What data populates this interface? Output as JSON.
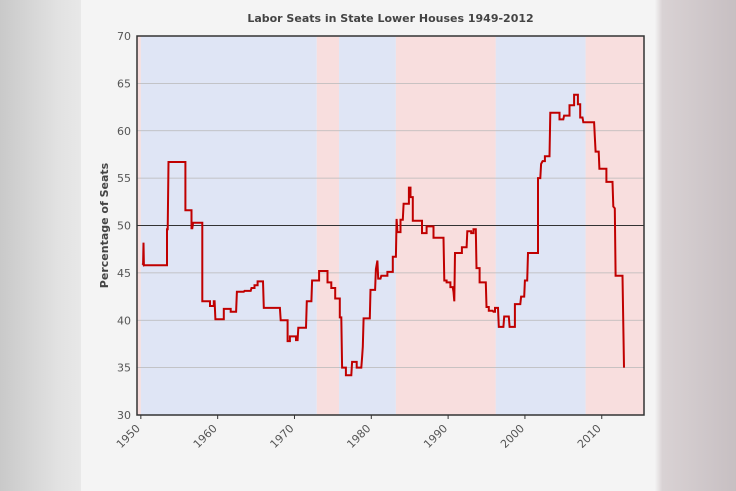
{
  "chart_data": {
    "type": "line",
    "title": "Labor Seats in State Lower Houses 1949-2012",
    "xlabel": "",
    "ylabel": "Percentage of Seats",
    "xlim": [
      1949.5,
      2015.5
    ],
    "ylim": [
      30,
      70
    ],
    "x_ticks": [
      1950,
      1960,
      1970,
      1980,
      1990,
      2000,
      2010
    ],
    "y_ticks": [
      30,
      35,
      40,
      45,
      50,
      55,
      60,
      65,
      70
    ],
    "reference_line": 50,
    "grid": true,
    "bands": [
      {
        "from": 1949.5,
        "to": 1950.0,
        "party": "labor",
        "color": "#f8dede"
      },
      {
        "from": 1950.0,
        "to": 1972.9,
        "party": "coalition",
        "color": "#dfe5f5"
      },
      {
        "from": 1972.9,
        "to": 1975.8,
        "party": "labor",
        "color": "#f8dede"
      },
      {
        "from": 1975.8,
        "to": 1983.2,
        "party": "coalition",
        "color": "#dfe5f5"
      },
      {
        "from": 1983.2,
        "to": 1996.2,
        "party": "labor",
        "color": "#f8dede"
      },
      {
        "from": 1996.2,
        "to": 2007.9,
        "party": "coalition",
        "color": "#dfe5f5"
      },
      {
        "from": 2007.9,
        "to": 2015.5,
        "party": "labor",
        "color": "#f8dede"
      }
    ],
    "series": [
      {
        "color": "#c00000",
        "points": [
          [
            1950.2,
            46.0
          ],
          [
            1950.3,
            45.9
          ],
          [
            1950.35,
            48.2
          ],
          [
            1950.4,
            45.8
          ],
          [
            1953.4,
            45.8
          ],
          [
            1953.4,
            49.6
          ],
          [
            1953.5,
            49.6
          ],
          [
            1953.6,
            56.7
          ],
          [
            1955.8,
            56.7
          ],
          [
            1955.8,
            51.6
          ],
          [
            1956.6,
            51.6
          ],
          [
            1956.6,
            49.7
          ],
          [
            1956.7,
            49.7
          ],
          [
            1956.8,
            50.3
          ],
          [
            1958.0,
            50.3
          ],
          [
            1958.0,
            42.0
          ],
          [
            1959.0,
            42.0
          ],
          [
            1959.0,
            41.5
          ],
          [
            1959.5,
            41.5
          ],
          [
            1959.5,
            42.0
          ],
          [
            1959.6,
            42.0
          ],
          [
            1959.7,
            40.1
          ],
          [
            1960.8,
            40.1
          ],
          [
            1960.8,
            41.2
          ],
          [
            1961.7,
            41.2
          ],
          [
            1961.7,
            40.9
          ],
          [
            1962.4,
            40.9
          ],
          [
            1962.5,
            43.0
          ],
          [
            1963.4,
            43.0
          ],
          [
            1963.5,
            43.1
          ],
          [
            1964.3,
            43.1
          ],
          [
            1964.4,
            43.4
          ],
          [
            1964.8,
            43.4
          ],
          [
            1964.8,
            43.7
          ],
          [
            1965.2,
            43.7
          ],
          [
            1965.2,
            44.1
          ],
          [
            1965.9,
            44.1
          ],
          [
            1966.0,
            41.3
          ],
          [
            1968.1,
            41.3
          ],
          [
            1968.2,
            40.0
          ],
          [
            1969.1,
            40.0
          ],
          [
            1969.1,
            37.8
          ],
          [
            1969.4,
            37.8
          ],
          [
            1969.4,
            38.3
          ],
          [
            1970.2,
            38.3
          ],
          [
            1970.2,
            37.9
          ],
          [
            1970.4,
            37.9
          ],
          [
            1970.5,
            39.2
          ],
          [
            1971.5,
            39.2
          ],
          [
            1971.6,
            42.0
          ],
          [
            1972.2,
            42.0
          ],
          [
            1972.3,
            44.2
          ],
          [
            1973.2,
            44.2
          ],
          [
            1973.2,
            45.2
          ],
          [
            1974.3,
            45.2
          ],
          [
            1974.3,
            44.0
          ],
          [
            1974.8,
            44.0
          ],
          [
            1974.8,
            43.4
          ],
          [
            1975.3,
            43.4
          ],
          [
            1975.3,
            42.3
          ],
          [
            1975.9,
            42.3
          ],
          [
            1975.9,
            40.3
          ],
          [
            1976.1,
            40.3
          ],
          [
            1976.2,
            35.0
          ],
          [
            1976.7,
            35.0
          ],
          [
            1976.7,
            34.2
          ],
          [
            1977.4,
            34.2
          ],
          [
            1977.5,
            35.6
          ],
          [
            1978.1,
            35.6
          ],
          [
            1978.1,
            35.0
          ],
          [
            1978.7,
            35.0
          ],
          [
            1978.8,
            36.1
          ],
          [
            1978.9,
            37.2
          ],
          [
            1979.0,
            40.2
          ],
          [
            1979.8,
            40.2
          ],
          [
            1979.9,
            43.2
          ],
          [
            1980.5,
            43.2
          ],
          [
            1980.6,
            45.4
          ],
          [
            1980.8,
            46.3
          ],
          [
            1980.9,
            44.4
          ],
          [
            1981.2,
            44.4
          ],
          [
            1981.3,
            44.7
          ],
          [
            1982.1,
            44.7
          ],
          [
            1982.1,
            45.1
          ],
          [
            1982.8,
            45.1
          ],
          [
            1982.8,
            46.7
          ],
          [
            1983.2,
            46.7
          ],
          [
            1983.3,
            50.7
          ],
          [
            1983.4,
            49.3
          ],
          [
            1983.8,
            49.3
          ],
          [
            1983.8,
            50.6
          ],
          [
            1984.1,
            50.6
          ],
          [
            1984.2,
            52.3
          ],
          [
            1984.9,
            52.3
          ],
          [
            1984.9,
            54.0
          ],
          [
            1985.1,
            54.0
          ],
          [
            1985.1,
            53.0
          ],
          [
            1985.4,
            53.0
          ],
          [
            1985.4,
            50.5
          ],
          [
            1986.6,
            50.5
          ],
          [
            1986.6,
            49.2
          ],
          [
            1987.2,
            49.2
          ],
          [
            1987.2,
            49.9
          ],
          [
            1988.1,
            49.9
          ],
          [
            1988.1,
            48.7
          ],
          [
            1989.4,
            48.7
          ],
          [
            1989.5,
            44.2
          ],
          [
            1989.8,
            44.2
          ],
          [
            1989.8,
            44.0
          ],
          [
            1990.3,
            44.0
          ],
          [
            1990.3,
            43.5
          ],
          [
            1990.6,
            43.5
          ],
          [
            1990.7,
            43.0
          ],
          [
            1990.8,
            42.0
          ],
          [
            1990.9,
            47.1
          ],
          [
            1991.8,
            47.1
          ],
          [
            1991.8,
            47.7
          ],
          [
            1992.4,
            47.7
          ],
          [
            1992.5,
            49.4
          ],
          [
            1993.0,
            49.4
          ],
          [
            1993.0,
            49.2
          ],
          [
            1993.3,
            49.2
          ],
          [
            1993.3,
            49.6
          ],
          [
            1993.6,
            49.6
          ],
          [
            1993.7,
            45.5
          ],
          [
            1994.1,
            45.5
          ],
          [
            1994.1,
            44.0
          ],
          [
            1994.9,
            44.0
          ],
          [
            1995.0,
            41.4
          ],
          [
            1995.3,
            41.4
          ],
          [
            1995.3,
            41.0
          ],
          [
            1995.8,
            41.0
          ],
          [
            1995.9,
            40.9
          ],
          [
            1996.1,
            40.9
          ],
          [
            1996.1,
            41.3
          ],
          [
            1996.5,
            41.3
          ],
          [
            1996.6,
            39.3
          ],
          [
            1997.2,
            39.3
          ],
          [
            1997.3,
            40.4
          ],
          [
            1997.9,
            40.4
          ],
          [
            1998.0,
            39.3
          ],
          [
            1998.7,
            39.3
          ],
          [
            1998.7,
            41.7
          ],
          [
            1999.4,
            41.7
          ],
          [
            1999.5,
            42.5
          ],
          [
            1999.9,
            42.5
          ],
          [
            2000.0,
            44.2
          ],
          [
            2000.3,
            44.2
          ],
          [
            2000.4,
            47.1
          ],
          [
            2001.7,
            47.1
          ],
          [
            2001.7,
            55.0
          ],
          [
            2002.0,
            55.0
          ],
          [
            2002.1,
            56.5
          ],
          [
            2002.3,
            56.8
          ],
          [
            2002.6,
            56.8
          ],
          [
            2002.6,
            57.3
          ],
          [
            2003.2,
            57.3
          ],
          [
            2003.3,
            61.9
          ],
          [
            2004.5,
            61.9
          ],
          [
            2004.5,
            61.2
          ],
          [
            2005.0,
            61.2
          ],
          [
            2005.1,
            61.6
          ],
          [
            2005.8,
            61.6
          ],
          [
            2005.8,
            62.7
          ],
          [
            2006.4,
            62.7
          ],
          [
            2006.4,
            63.8
          ],
          [
            2006.9,
            63.8
          ],
          [
            2006.9,
            62.8
          ],
          [
            2007.2,
            62.8
          ],
          [
            2007.2,
            61.4
          ],
          [
            2007.5,
            61.4
          ],
          [
            2007.6,
            60.9
          ],
          [
            2009.0,
            60.9
          ],
          [
            2009.1,
            59.4
          ],
          [
            2009.2,
            57.8
          ],
          [
            2009.6,
            57.8
          ],
          [
            2009.7,
            56.0
          ],
          [
            2010.6,
            56.0
          ],
          [
            2010.6,
            54.6
          ],
          [
            2011.4,
            54.6
          ],
          [
            2011.5,
            52.0
          ],
          [
            2011.7,
            51.8
          ],
          [
            2011.8,
            44.7
          ],
          [
            2012.7,
            44.7
          ],
          [
            2012.9,
            35.0
          ]
        ]
      }
    ]
  }
}
